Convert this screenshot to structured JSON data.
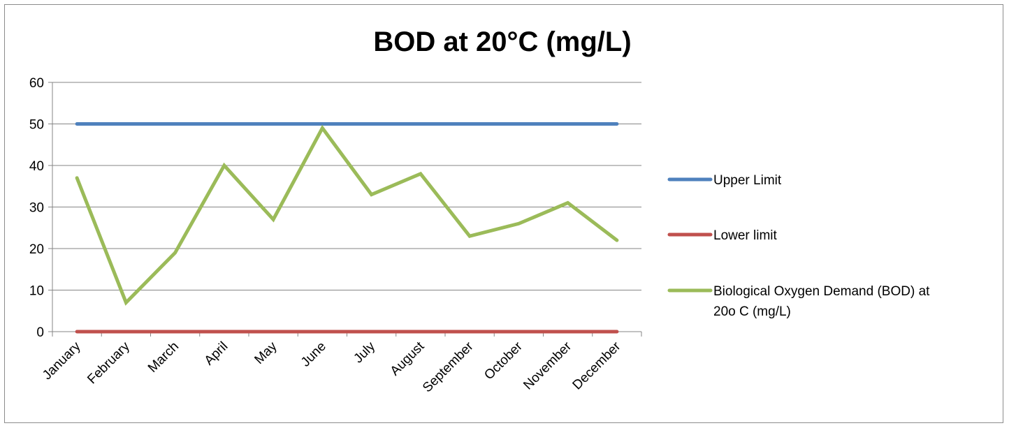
{
  "chart_data": {
    "type": "line",
    "title": "BOD at 20°C (mg/L)",
    "xlabel": "",
    "ylabel": "",
    "categories": [
      "January",
      "February",
      "March",
      "April",
      "May",
      "June",
      "July",
      "August",
      "September",
      "October",
      "November",
      "December"
    ],
    "ylim": [
      0,
      60
    ],
    "yticks": [
      "0",
      "10",
      "20",
      "30",
      "40",
      "50",
      "60"
    ],
    "grid": "horizontal",
    "legend_position": "right",
    "series": [
      {
        "name": "Upper Limit",
        "color": "#4f81bd",
        "values": [
          50,
          50,
          50,
          50,
          50,
          50,
          50,
          50,
          50,
          50,
          50,
          50
        ]
      },
      {
        "name": "Lower limit",
        "color": "#c0504d",
        "values": [
          0,
          0,
          0,
          0,
          0,
          0,
          0,
          0,
          0,
          0,
          0,
          0
        ]
      },
      {
        "name": "Biological Oxygen Demand (BOD) at 20o C (mg/L)",
        "color": "#9bbb59",
        "values": [
          37,
          7,
          19,
          40,
          27,
          49,
          33,
          38,
          23,
          26,
          31,
          22
        ]
      }
    ]
  }
}
